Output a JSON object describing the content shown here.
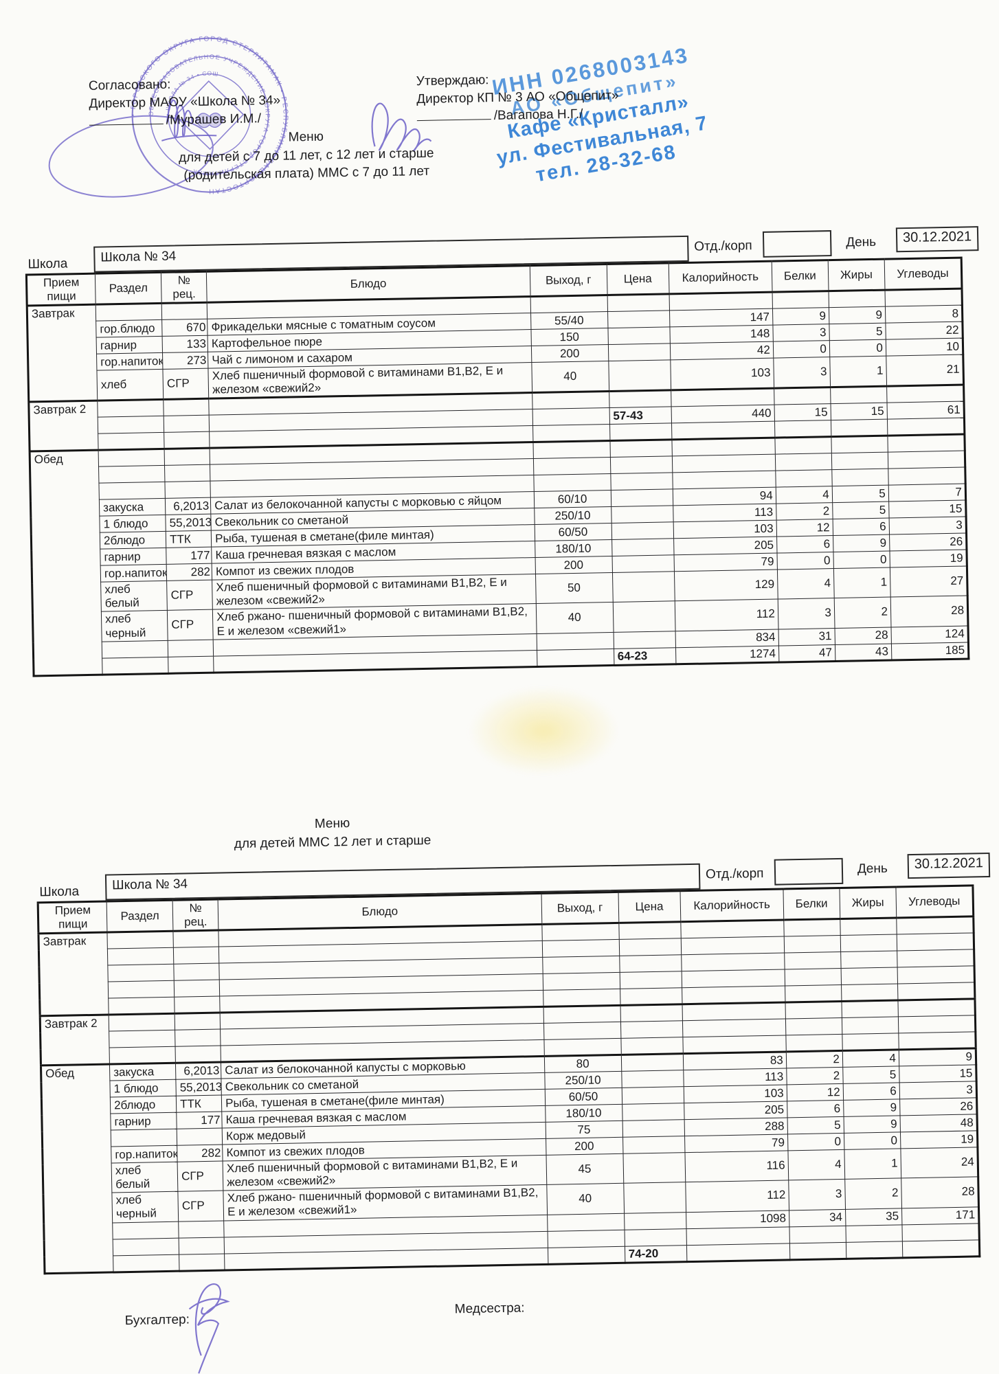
{
  "approvals": {
    "left": {
      "line1": "Согласовано:",
      "line2": "Директор МАОУ «Школа № 34»",
      "line3": "/Мурашев И.М./"
    },
    "right": {
      "line1": "Утверждаю:",
      "line2": "Директор КП № 3 АО «Общепит»",
      "line3": "/Вагапова Н.Г./"
    }
  },
  "blue_stamp": {
    "color": "#2e7dd3",
    "lines": [
      "ИНН 0268003143",
      "АО «Общепит»",
      "Кафе «Кристалл»",
      "ул. Фестивальная, 7",
      "тел. 28-32-68"
    ]
  },
  "round_stamp": {
    "color": "#7166c8",
    "rings": [
      "• ГОРОДСКОГО ОКРУГА ГОРОД СТЕРЛИТАМАК • РЕСПУБЛИКИ БАШКОРТОСТАН ",
      "ОБЩЕОБРАЗОВАТЕЛЬНОЕ УЧРЕЖДЕНИЕ • ОКРУГА ГОРОД СТЕРЛИТАМАК ",
      "• ШКОЛА № 34 • СОШ "
    ]
  },
  "footer": {
    "accountant": "Бухгалтер:",
    "nurse": "Медсестра:"
  },
  "menus": [
    {
      "title": [
        "Меню",
        "для детей с 7 до 11 лет, с 12 лет и старше",
        "(родительская плата)  ММС с 7 до 11 лет"
      ],
      "school_label": "Школа",
      "school_value": "Школа № 34",
      "dept_label": "Отд./корп",
      "dept_value": "",
      "day_label": "День",
      "day_value": "30.12.2021",
      "columns": [
        "Прием пищи",
        "Раздел",
        "№ рец.",
        "Блюдо",
        "Выход, г",
        "Цена",
        "Калорийность",
        "Белки",
        "Жиры",
        "Углеводы"
      ],
      "sections": [
        {
          "meal": "Завтрак",
          "rows": [
            [
              "",
              "",
              "",
              "",
              "",
              "",
              "",
              "",
              ""
            ],
            [
              "гор.блюдо",
              "670",
              "Фрикадельки мясные с томатным соусом",
              "55/40",
              "",
              "147",
              "9",
              "9",
              "8"
            ],
            [
              "гарнир",
              "133",
              "Картофельное пюре",
              "150",
              "",
              "148",
              "3",
              "5",
              "22"
            ],
            [
              "гор.напиток",
              "273",
              "Чай с лимоном и сахаром",
              "200",
              "",
              "42",
              "0",
              "0",
              "10"
            ],
            [
              "хлеб",
              "СГР",
              "Хлеб пшеничный формовой с витаминами В1,В2, Е и железом «свежий2»",
              "40",
              "",
              "103",
              "3",
              "1",
              "21"
            ]
          ]
        },
        {
          "meal": "Завтрак 2",
          "rows": [
            [
              "",
              "",
              "",
              "",
              "",
              "",
              "",
              "",
              ""
            ],
            [
              "",
              "",
              "",
              "",
              "57-43",
              "440",
              "15",
              "15",
              "61"
            ],
            [
              "",
              "",
              "",
              "",
              "",
              "",
              "",
              "",
              ""
            ]
          ]
        },
        {
          "meal": "Обед",
          "rows": [
            [
              "",
              "",
              "",
              "",
              "",
              "",
              "",
              "",
              ""
            ],
            [
              "",
              "",
              "",
              "",
              "",
              "",
              "",
              "",
              ""
            ],
            [
              "",
              "",
              "",
              "",
              "",
              "",
              "",
              "",
              ""
            ],
            [
              "закуска",
              "6,2013",
              "Салат из белокочанной капусты с морковью с яйцом",
              "60/10",
              "",
              "94",
              "4",
              "5",
              "7"
            ],
            [
              "1 блюдо",
              "55,2013",
              "Свекольник со сметаной",
              "250/10",
              "",
              "113",
              "2",
              "5",
              "15"
            ],
            [
              "2блюдо",
              "ТТК",
              "Рыба, тушеная в сметане(филе минтая)",
              "60/50",
              "",
              "103",
              "12",
              "6",
              "3"
            ],
            [
              "гарнир",
              "177",
              "Каша гречневая вязкая с маслом",
              "180/10",
              "",
              "205",
              "6",
              "9",
              "26"
            ],
            [
              "гор.напиток",
              "282",
              "Компот из свежих плодов",
              "200",
              "",
              "79",
              "0",
              "0",
              "19"
            ],
            [
              "хлеб белый",
              "СГР",
              "Хлеб пшеничный формовой с витаминами В1,В2, Е и железом «свежий2»",
              "50",
              "",
              "129",
              "4",
              "1",
              "27"
            ],
            [
              "хлеб черный",
              "СГР",
              "Хлеб ржано- пшеничный формовой с витаминами В1,В2, Е и железом «свежий1»",
              "40",
              "",
              "112",
              "3",
              "2",
              "28"
            ],
            [
              "",
              "",
              "",
              "",
              "",
              "834",
              "31",
              "28",
              "124"
            ],
            [
              "",
              "",
              "",
              "",
              "64-23",
              "1274",
              "47",
              "43",
              "185"
            ]
          ]
        }
      ]
    },
    {
      "title": [
        "Меню",
        "для детей ММС 12 лет и старше"
      ],
      "school_label": "Школа",
      "school_value": "Школа № 34",
      "dept_label": "Отд./корп",
      "dept_value": "",
      "day_label": "День",
      "day_value": "30.12.2021",
      "columns": [
        "Прием пищи",
        "Раздел",
        "№ рец.",
        "Блюдо",
        "Выход, г",
        "Цена",
        "Калорийность",
        "Белки",
        "Жиры",
        "Углеводы"
      ],
      "sections": [
        {
          "meal": "Завтрак",
          "rows": [
            [
              "",
              "",
              "",
              "",
              "",
              "",
              "",
              "",
              ""
            ],
            [
              "",
              "",
              "",
              "",
              "",
              "",
              "",
              "",
              ""
            ],
            [
              "",
              "",
              "",
              "",
              "",
              "",
              "",
              "",
              ""
            ],
            [
              "",
              "",
              "",
              "",
              "",
              "",
              "",
              "",
              ""
            ],
            [
              "",
              "",
              "",
              "",
              "",
              "",
              "",
              "",
              ""
            ]
          ]
        },
        {
          "meal": "Завтрак 2",
          "rows": [
            [
              "",
              "",
              "",
              "",
              "",
              "",
              "",
              "",
              ""
            ],
            [
              "",
              "",
              "",
              "",
              "",
              "",
              "",
              "",
              ""
            ],
            [
              "",
              "",
              "",
              "",
              "",
              "",
              "",
              "",
              ""
            ]
          ]
        },
        {
          "meal": "Обед",
          "rows": [
            [
              "закуска",
              "6,2013",
              "Салат из белокочанной капусты с морковью",
              "80",
              "",
              "83",
              "2",
              "4",
              "9"
            ],
            [
              "1 блюдо",
              "55,2013",
              "Свекольник со сметаной",
              "250/10",
              "",
              "113",
              "2",
              "5",
              "15"
            ],
            [
              "2блюдо",
              "ТТК",
              "Рыба, тушеная в сметане(филе минтая)",
              "60/50",
              "",
              "103",
              "12",
              "6",
              "3"
            ],
            [
              "гарнир",
              "177",
              "Каша гречневая вязкая с маслом",
              "180/10",
              "",
              "205",
              "6",
              "9",
              "26"
            ],
            [
              "",
              "",
              "Корж медовый",
              "75",
              "",
              "288",
              "5",
              "9",
              "48"
            ],
            [
              "гор.напиток",
              "282",
              "Компот из свежих плодов",
              "200",
              "",
              "79",
              "0",
              "0",
              "19"
            ],
            [
              "хлеб белый",
              "СГР",
              "Хлеб пшеничный формовой с витаминами В1,В2, Е и железом «свежий2»",
              "45",
              "",
              "116",
              "4",
              "1",
              "24"
            ],
            [
              "хлеб черный",
              "СГР",
              "Хлеб ржано- пшеничный формовой с витаминами В1,В2, Е и железом «свежий1»",
              "40",
              "",
              "112",
              "3",
              "2",
              "28"
            ],
            [
              "",
              "",
              "",
              "",
              "",
              "1098",
              "34",
              "35",
              "171"
            ],
            [
              "",
              "",
              "",
              "",
              "",
              "",
              "",
              "",
              ""
            ],
            [
              "",
              "",
              "",
              "",
              "74-20",
              "",
              "",
              "",
              ""
            ]
          ]
        }
      ]
    }
  ]
}
